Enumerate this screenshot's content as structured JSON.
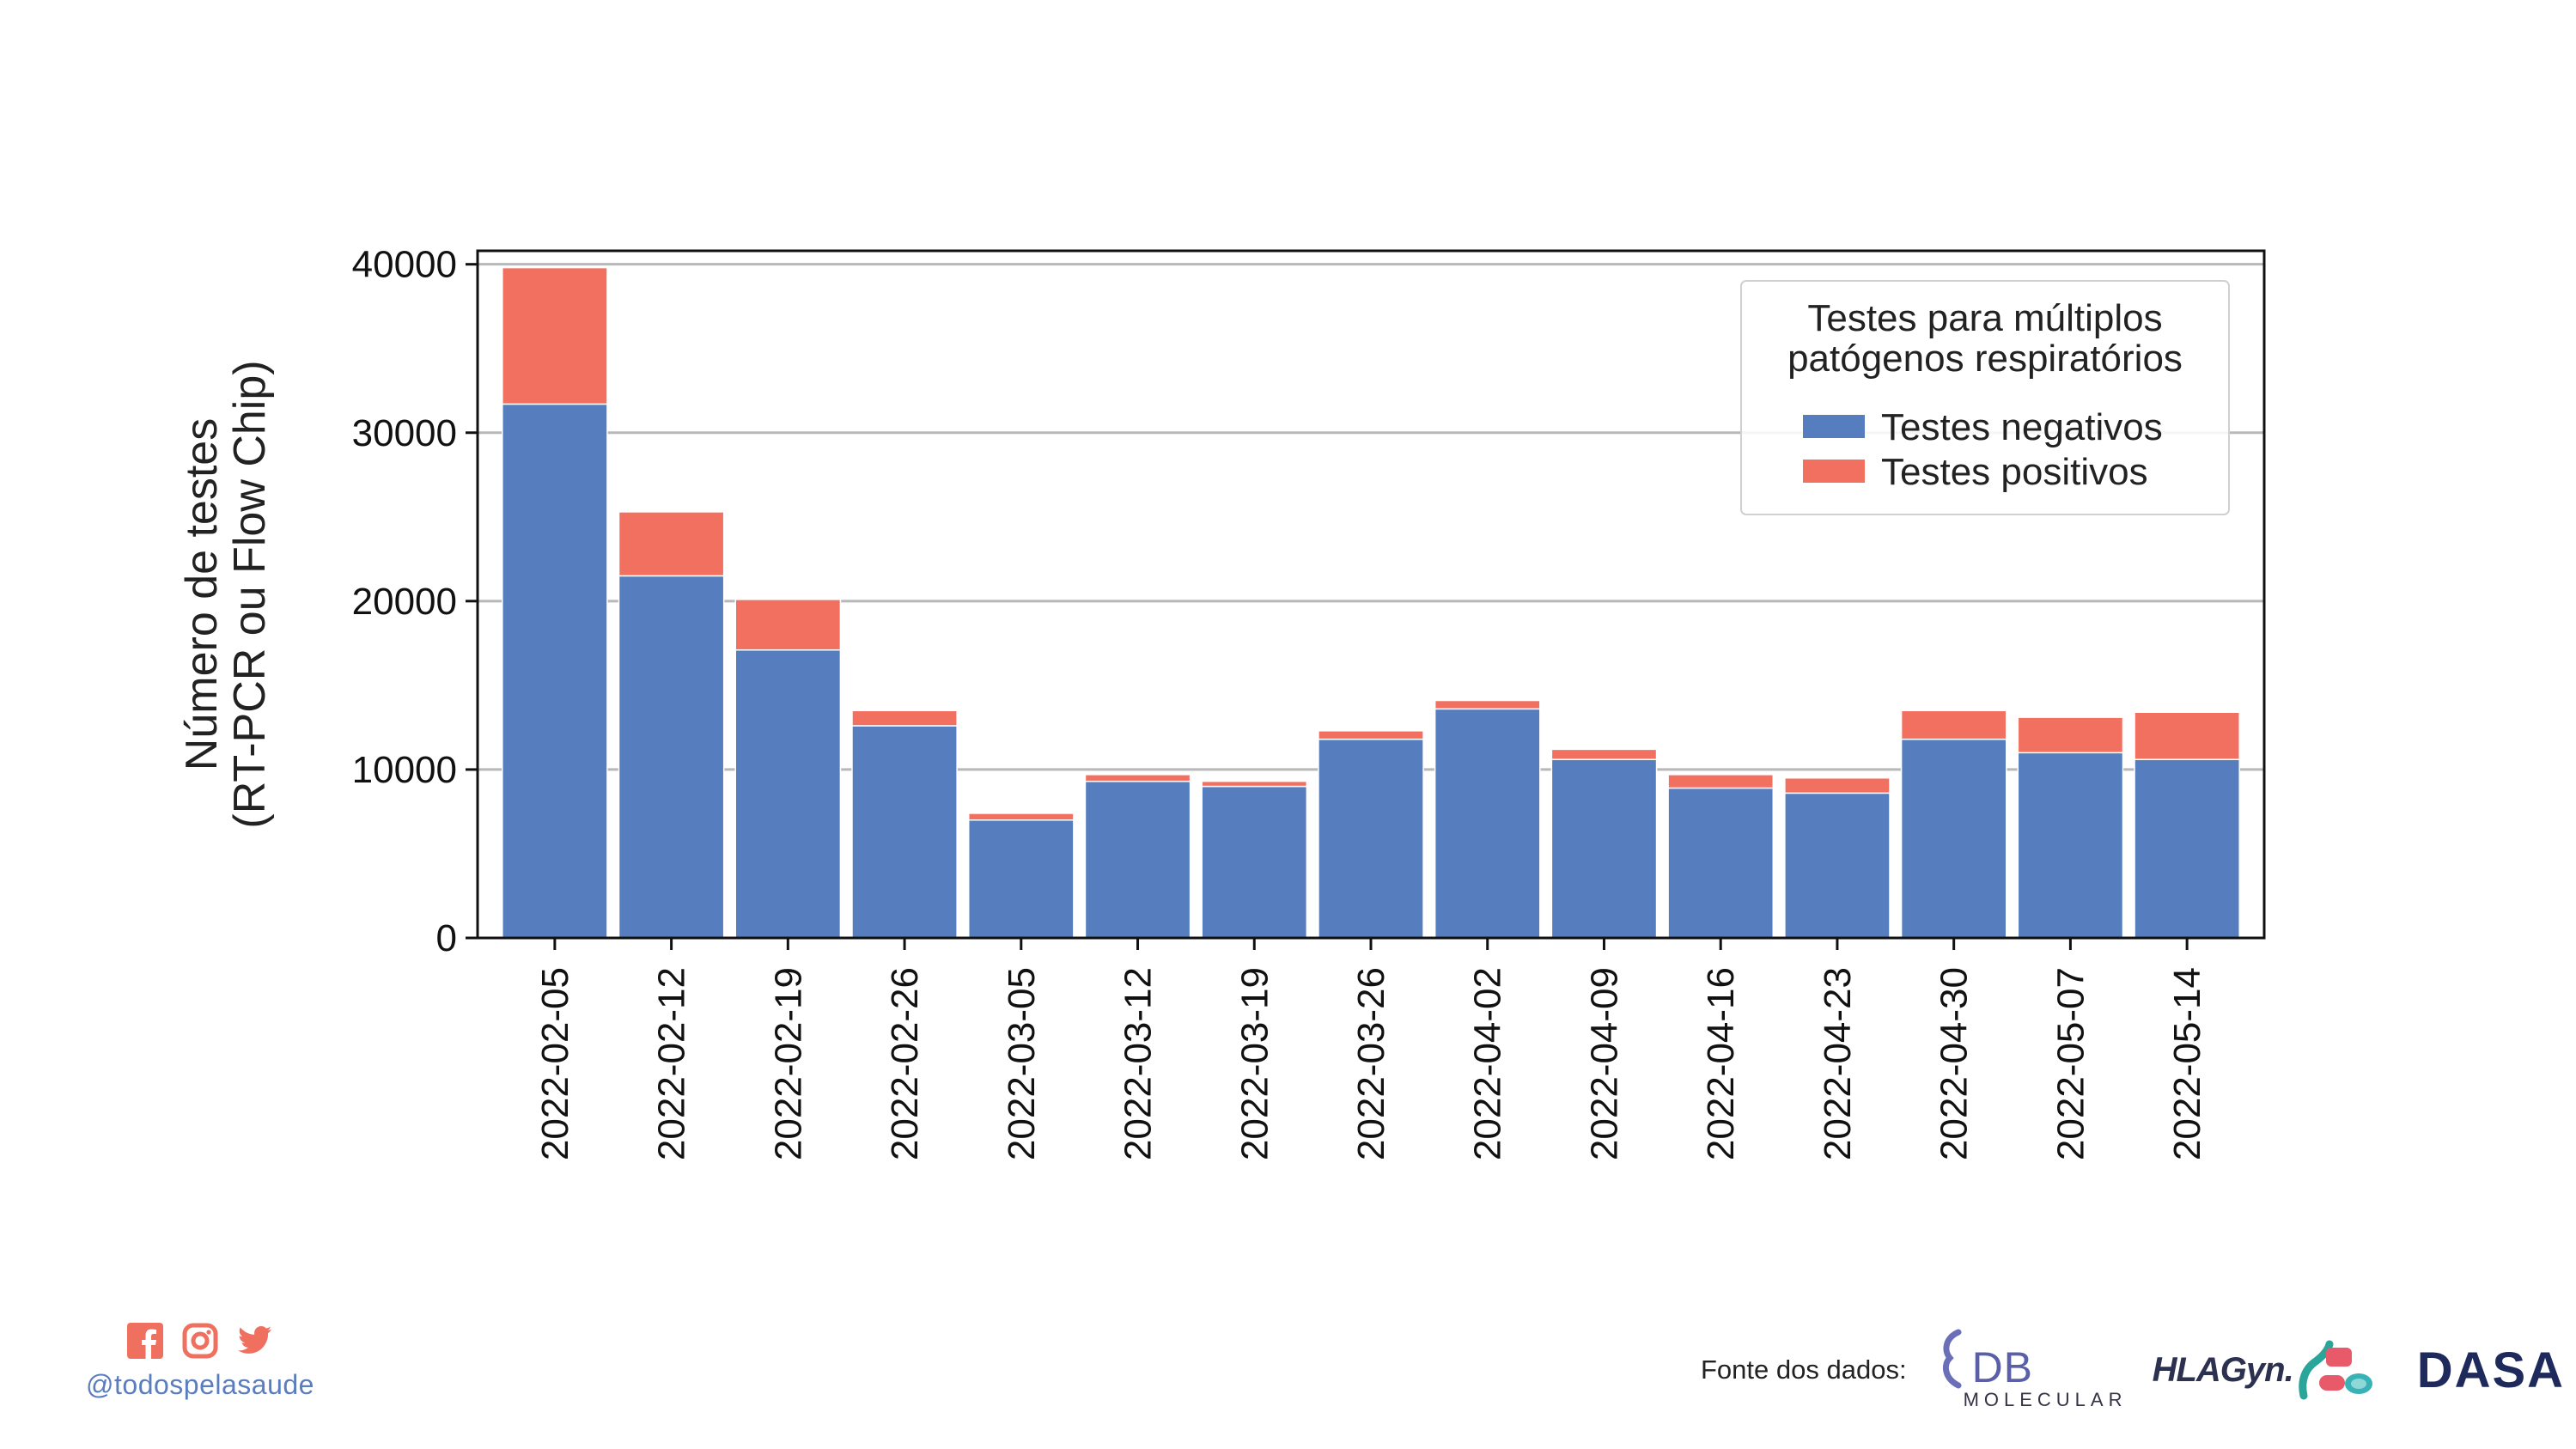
{
  "chart_data": {
    "type": "bar",
    "stacked": true,
    "categories": [
      "2022-02-05",
      "2022-02-12",
      "2022-02-19",
      "2022-02-26",
      "2022-03-05",
      "2022-03-12",
      "2022-03-19",
      "2022-03-26",
      "2022-04-02",
      "2022-04-09",
      "2022-04-16",
      "2022-04-23",
      "2022-04-30",
      "2022-05-07",
      "2022-05-14"
    ],
    "series": [
      {
        "name": "Testes negativos",
        "color": "#567ebf",
        "values": [
          31700,
          21500,
          17100,
          12600,
          7000,
          9300,
          9000,
          11800,
          13600,
          10600,
          8900,
          8600,
          11800,
          11000,
          10600
        ]
      },
      {
        "name": "Testes positivos",
        "color": "#f17060",
        "values": [
          8100,
          3800,
          3000,
          900,
          400,
          400,
          300,
          500,
          500,
          600,
          800,
          900,
          1700,
          2100,
          2800
        ]
      }
    ],
    "ylabel_line1": "Número de testes",
    "ylabel_line2": "(RT-PCR ou Flow Chip)",
    "ylim": [
      0,
      40000
    ],
    "yticks": [
      0,
      10000,
      20000,
      30000,
      40000
    ],
    "grid": "horizontal",
    "legend": {
      "title_line1": "Testes para múltiplos",
      "title_line2": "patógenos respiratórios",
      "placement": "top-right"
    }
  },
  "footer": {
    "social_icons": [
      "facebook-icon",
      "instagram-icon",
      "twitter-icon"
    ],
    "social_color": "#f07060",
    "handle": "@todospelasaude",
    "source_label": "Fonte dos dados:",
    "logos": {
      "db_mark": "DB",
      "db_sub": "MOLECULAR",
      "hla": "HLAGyn.",
      "dasa": "DASA"
    }
  }
}
